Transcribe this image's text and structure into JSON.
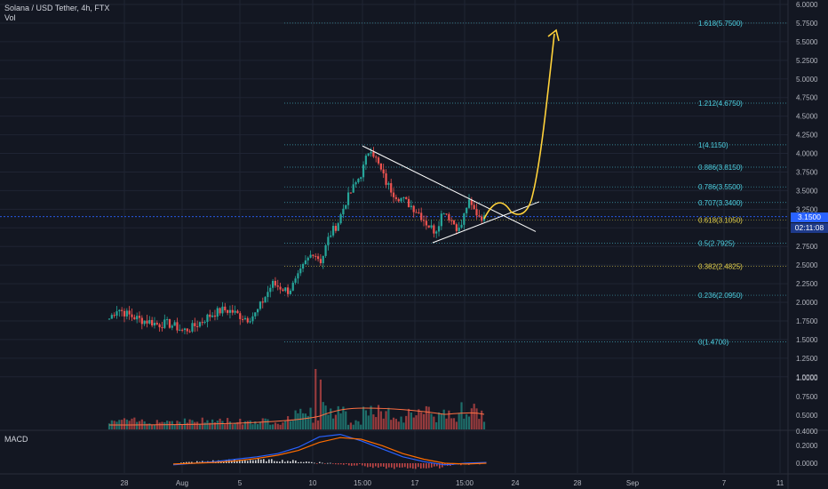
{
  "legend": {
    "title": "Solana / USD Tether, 4h, FTX",
    "volume": "Vol",
    "macd": "MACD"
  },
  "badges": {
    "price": "3.1500",
    "countdown": "02:11:08"
  },
  "colors": {
    "background": "#131722",
    "up": "#26a69a",
    "down": "#ef5350",
    "fib": "#4dd0e1",
    "fib_gold": "#e6d34a",
    "projection": "#ffd23a",
    "macd_line": "#2962ff",
    "signal_line": "#ff6d00",
    "volume_ma": "#ff7043",
    "price_line": "#2962ff"
  },
  "chart_data": [
    {
      "type": "candlestick",
      "title": "Solana / USD Tether, 4h, FTX",
      "y_axis": {
        "range": [
          1.0,
          6.0
        ],
        "ticks": [
          "6.0000",
          "5.7500",
          "5.5000",
          "5.2500",
          "5.0000",
          "4.7500",
          "4.5000",
          "4.2500",
          "4.0000",
          "3.7500",
          "3.5000",
          "3.2500",
          "3.0000",
          "2.7500",
          "2.5000",
          "2.2500",
          "2.0000",
          "1.7500",
          "1.5000",
          "1.2500",
          "1.0000"
        ]
      },
      "x_axis": {
        "ticks": [
          "28",
          "Aug",
          "5",
          "10",
          "15:00",
          "17",
          "15:00",
          "24",
          "28",
          "Sep",
          "7",
          "11"
        ]
      },
      "price_path": [
        [
          1.78,
          1.92,
          1.85,
          1.8,
          1.76,
          1.74,
          1.7,
          1.72,
          1.68,
          1.62,
          1.65,
          1.72,
          1.8,
          1.86,
          1.9,
          1.88,
          1.82,
          1.78,
          1.85,
          2.05,
          2.25,
          2.2,
          2.15,
          2.3,
          2.52,
          2.68,
          2.55,
          2.9,
          3.05,
          3.35,
          3.55,
          3.75,
          4.1,
          3.85,
          3.6,
          3.45,
          3.38,
          3.3,
          3.2,
          3.05,
          2.95,
          3.25,
          3.1,
          2.96,
          3.35,
          3.2,
          3.12
        ]
      ],
      "last_price": 3.15,
      "fibonacci": [
        {
          "label": "1.618(5.7500)",
          "value": 5.75
        },
        {
          "label": "1.212(4.6750)",
          "value": 4.675
        },
        {
          "label": "1(4.1150)",
          "value": 4.115
        },
        {
          "label": "0.886(3.8150)",
          "value": 3.815
        },
        {
          "label": "0.786(3.5500)",
          "value": 3.55
        },
        {
          "label": "0.707(3.3400)",
          "value": 3.34
        },
        {
          "label": "0.618(3.1050)",
          "value": 3.105
        },
        {
          "label": "0.5(2.7925)",
          "value": 2.7925
        },
        {
          "label": "0.382(2.4825)",
          "value": 2.4825
        },
        {
          "label": "0.236(2.0950)",
          "value": 2.095
        },
        {
          "label": "0(1.4700)",
          "value": 1.47
        }
      ],
      "annotations": {
        "triangle": "descending upper trendline from 4.10 high, ascending lower trendline from 2.80 low",
        "projection": "curved arrow rising to about 5.65"
      }
    },
    {
      "type": "bar",
      "title": "Vol",
      "y_axis": {
        "ticks": [
          "1.0000",
          "0.7500",
          "0.5000"
        ]
      },
      "note": "volume histogram with moving-average line"
    },
    {
      "type": "line",
      "title": "MACD",
      "y_axis": {
        "ticks": [
          "0.4000",
          "0.2000",
          "0.0000"
        ]
      },
      "series": [
        {
          "values": [
            -0.02,
            0.0,
            0.02,
            0.05,
            0.08,
            0.12,
            0.2,
            0.33,
            0.36,
            0.28,
            0.18,
            0.08,
            0.02,
            -0.02,
            0.0,
            0.01
          ]
        },
        {
          "values": [
            -0.01,
            0.0,
            0.01,
            0.03,
            0.06,
            0.1,
            0.16,
            0.26,
            0.32,
            0.3,
            0.22,
            0.12,
            0.05,
            0.0,
            -0.01,
            0.0
          ]
        }
      ]
    }
  ]
}
